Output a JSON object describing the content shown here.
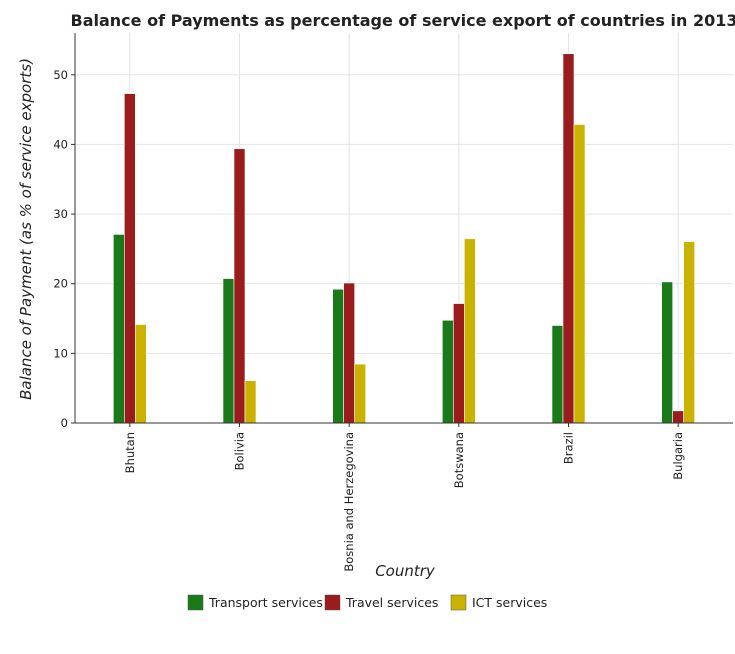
{
  "chart_data": {
    "type": "bar",
    "title": "Balance of Payments as percentage of service export of countries in 2013",
    "xlabel": "Country",
    "ylabel": "Balance of Payment (as % of service exports)",
    "categories": [
      "Bhutan",
      "Bolivia",
      "Bosnia and Herzegovina",
      "Botswana",
      "Brazil",
      "Bulgaria"
    ],
    "ylim": [
      0,
      56
    ],
    "yticks": [
      0,
      10,
      20,
      30,
      40,
      50
    ],
    "grid": true,
    "legend_position": "bottom-center",
    "series": [
      {
        "name": "Transport services",
        "color": "#1a7a1a",
        "values": [
          27.08,
          20.74,
          19.21,
          14.75,
          14.0,
          20.26
        ]
      },
      {
        "name": "Travel services",
        "color": "#9b1c1c",
        "values": [
          47.3,
          39.38,
          20.1,
          17.15,
          53.02,
          1.75
        ]
      },
      {
        "name": "ICT services",
        "color": "#c9b200",
        "values": [
          14.14,
          6.08,
          8.46,
          26.45,
          42.86,
          26.05
        ]
      }
    ]
  }
}
